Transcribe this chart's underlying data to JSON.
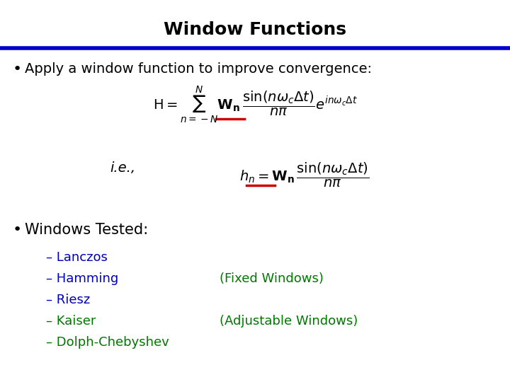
{
  "title": "Window Functions",
  "title_fontsize": 18,
  "title_fontweight": "bold",
  "title_color": "#000000",
  "background_color": "#ffffff",
  "header_line_color": "#0000cc",
  "bullet1_text": "Apply a window function to improve convergence:",
  "bullet1_color": "#000000",
  "bullet1_fontsize": 14,
  "bullet2_text": "Windows Tested:",
  "bullet2_color": "#000000",
  "bullet2_fontsize": 15,
  "items_blue": [
    "– Lanczos",
    "– Hamming",
    "– Riesz"
  ],
  "items_green": [
    "– Kaiser",
    "– Dolph-Chebyshev"
  ],
  "item_color_blue": "#0000bb",
  "item_color_green": "#007700",
  "item_fontsize": 13,
  "fixed_windows_text": "(Fixed Windows)",
  "fixed_windows_color": "#007700",
  "adjustable_windows_text": "(Adjustable Windows)",
  "adjustable_windows_color": "#007700",
  "eq_color": "#000000",
  "eq_fontsize": 14,
  "underline_color": "#cc0000"
}
